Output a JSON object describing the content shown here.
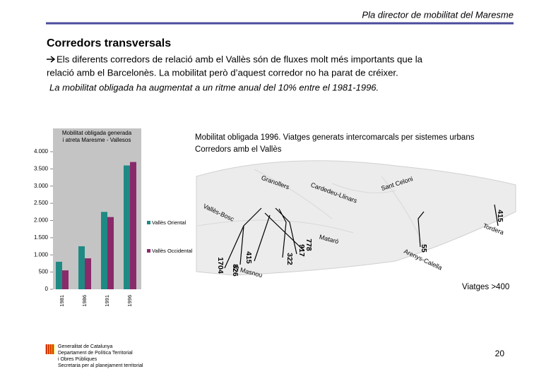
{
  "header": {
    "title": "Pla director de mobilitat del Maresme"
  },
  "section_title": "Corredors transversals",
  "bullet_lines": [
    "Els diferents corredors de relació amb el Vallès són de fluxes molt més importants que la",
    "relació amb el Barcelonès. La mobilitat però d’aquest corredor no ha parat de créixer."
  ],
  "note": "La mobilitat obligada ha augmentat a un ritme anual del 10% entre el 1981-1996.",
  "chart_data": {
    "type": "bar",
    "title_lines": [
      "Mobilitat obligada generada",
      "i atreta Maresme - Vallesos"
    ],
    "categories": [
      "1981",
      "1986",
      "1991",
      "1996"
    ],
    "series": [
      {
        "name": "Vallès Oriental",
        "color": "#1f8a84",
        "values": [
          800,
          1250,
          2250,
          3600
        ]
      },
      {
        "name": "Vallès Occidental",
        "color": "#8a2a6a",
        "values": [
          550,
          900,
          2100,
          3700
        ]
      }
    ],
    "ylim": [
      0,
      4000
    ],
    "yticks": [
      0,
      500,
      {
        "value": 1000,
        "label": "1.000"
      },
      {
        "value": 1500,
        "label": "1.500"
      },
      {
        "value": 2000,
        "label": "2.000"
      },
      {
        "value": 2500,
        "label": "2.500"
      },
      {
        "value": 3000,
        "label": "3.000"
      },
      {
        "value": 3500,
        "label": "3.500"
      },
      {
        "value": 4000,
        "label": "4.000"
      }
    ]
  },
  "map": {
    "caption_lines": [
      "Mobilitat obligada 1996. Viatges generats intercomarcals per sistemes urbans",
      "Corredors amb el Vallès"
    ],
    "places": [
      "Granollers",
      "Cardedeu-Llinars",
      "Sant Celoni",
      "Vallès-Bosc",
      "Tordera",
      "Mataró",
      "Arenys-Calella",
      "El Masnou"
    ],
    "flows": [
      "1704",
      "826",
      "415",
      "917",
      "778",
      "322",
      "55",
      "415"
    ],
    "legend": "Viatges >400"
  },
  "page_number": "20",
  "footer_lines": [
    "Generalitat de Catalunya",
    "Departament de Política Territorial",
    "i Obres Públiques",
    "Secretaria per al planejament territorial"
  ]
}
